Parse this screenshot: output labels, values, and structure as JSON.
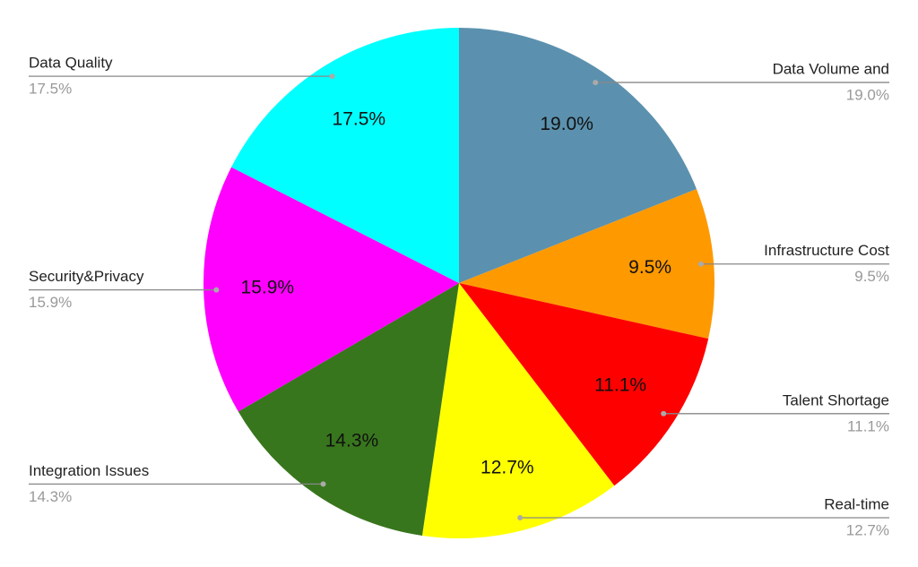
{
  "chart_data": {
    "type": "pie",
    "categories": [
      "Data Volume and",
      "Infrastructure Cost",
      "Talent Shortage",
      "Real-time",
      "Integration Issues",
      "Security&Privacy",
      "Data Quality"
    ],
    "values": [
      19.0,
      9.5,
      11.1,
      12.7,
      14.3,
      15.9,
      17.5
    ],
    "value_labels": [
      "19.0%",
      "9.5%",
      "11.1%",
      "12.7%",
      "14.3%",
      "15.9%",
      "17.5%"
    ],
    "colors": [
      "#5b91ae",
      "#ff9900",
      "#ff0000",
      "#ffff00",
      "#38761d",
      "#ff00ff",
      "#00ffff"
    ]
  }
}
